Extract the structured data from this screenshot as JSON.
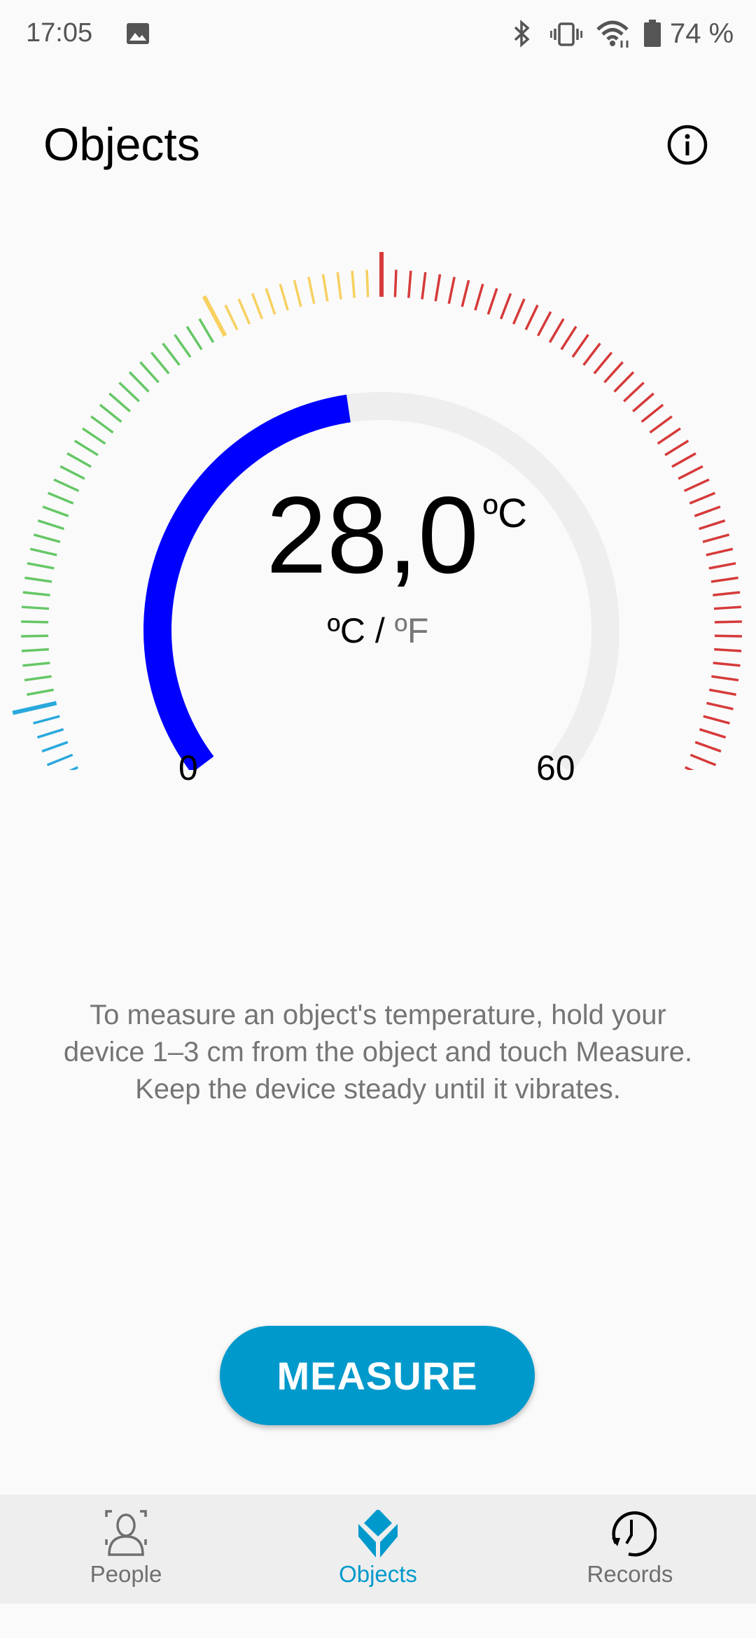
{
  "status_bar": {
    "time": "17:05",
    "battery_percent": "74 %",
    "icons": [
      "gallery-icon",
      "bluetooth-icon",
      "vibrate-icon",
      "wifi-icon",
      "battery-icon"
    ]
  },
  "header": {
    "title": "Objects",
    "info_icon": "info-icon"
  },
  "gauge": {
    "min": 0,
    "max": 60,
    "value": 28.0,
    "reading": "28,0",
    "unit": "ºC",
    "min_label": "0",
    "max_label": "60",
    "progress_color": "#0000ff",
    "track_color": "#eeeeee",
    "ranges": [
      {
        "from": 0,
        "to": 8,
        "color": "#29a8dc"
      },
      {
        "from": 8,
        "to": 24,
        "color": "#66c766"
      },
      {
        "from": 24,
        "to": 30,
        "color": "#f7d060"
      },
      {
        "from": 30,
        "to": 60,
        "color": "#d63a3a"
      }
    ],
    "tick_step": 0.5
  },
  "unit_toggle": {
    "celsius": "ºC",
    "separator": " / ",
    "fahrenheit": "ºF"
  },
  "instructions": "To measure an object's temperature, hold your device 1–3 cm from the object and touch Measure. Keep the device steady until it vibrates.",
  "measure_button": {
    "label": "MEASURE",
    "color": "#0099cc"
  },
  "bottom_nav": {
    "active_color": "#0099cc",
    "items": [
      {
        "label": "People",
        "icon": "person-scan-icon"
      },
      {
        "label": "Objects",
        "icon": "cube-icon",
        "active": true
      },
      {
        "label": "Records",
        "icon": "history-clock-icon"
      }
    ]
  }
}
